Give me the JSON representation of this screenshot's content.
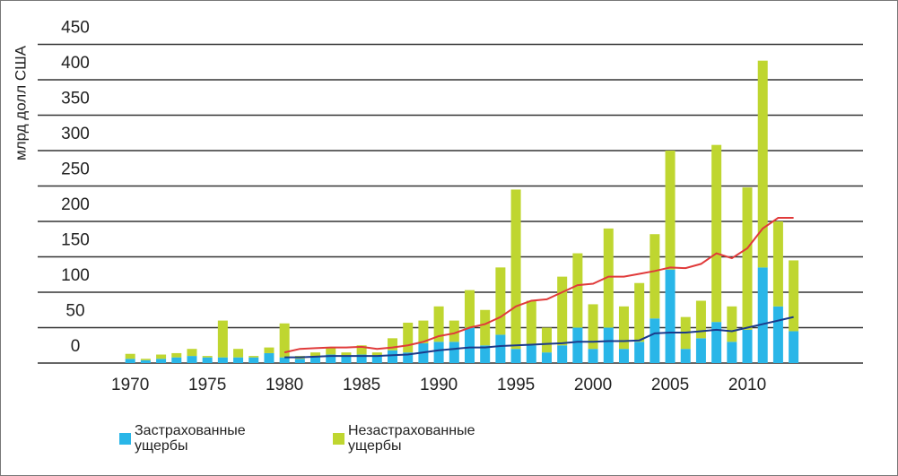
{
  "chart_data": {
    "type": "bar",
    "stacked": true,
    "y_label": "млрд долл США",
    "x": [
      1970,
      1971,
      1972,
      1973,
      1974,
      1975,
      1976,
      1977,
      1978,
      1979,
      1980,
      1981,
      1982,
      1983,
      1984,
      1985,
      1986,
      1987,
      1988,
      1989,
      1990,
      1991,
      1992,
      1993,
      1994,
      1995,
      1996,
      1997,
      1998,
      1999,
      2000,
      2001,
      2002,
      2003,
      2004,
      2005,
      2006,
      2007,
      2008,
      2009,
      2010,
      2011,
      2012,
      2013
    ],
    "xlim": [
      1964,
      2017.5
    ],
    "xticks": [
      1970,
      1975,
      1980,
      1985,
      1990,
      1995,
      2000,
      2005,
      2010
    ],
    "ylim": [
      0,
      450
    ],
    "yticks": [
      0,
      50,
      100,
      150,
      200,
      250,
      300,
      350,
      400,
      450
    ],
    "grid": true,
    "series": [
      {
        "name": "Застрахованные ущербы",
        "color": "#29b6e8",
        "values": [
          6,
          4,
          6,
          8,
          10,
          8,
          8,
          8,
          8,
          14,
          8,
          6,
          10,
          12,
          10,
          12,
          10,
          18,
          15,
          28,
          30,
          30,
          50,
          25,
          40,
          20,
          25,
          15,
          25,
          50,
          20,
          50,
          20,
          30,
          63,
          132,
          20,
          35,
          58,
          30,
          47,
          135,
          80,
          45
        ]
      },
      {
        "name": "Незастрахованные ущербы",
        "color": "#bfd630",
        "values": [
          7,
          2,
          6,
          6,
          10,
          2,
          52,
          12,
          2,
          8,
          48,
          4,
          5,
          10,
          5,
          13,
          5,
          17,
          42,
          32,
          50,
          30,
          53,
          50,
          95,
          225,
          63,
          35,
          97,
          105,
          63,
          140,
          60,
          83,
          119,
          168,
          45,
          53,
          250,
          50,
          201,
          292,
          120,
          100
        ]
      }
    ],
    "lines": [
      {
        "type": "line",
        "color": "#e03a3a",
        "values": [
          null,
          null,
          null,
          null,
          null,
          null,
          null,
          null,
          null,
          null,
          15,
          20,
          21,
          22,
          22,
          23,
          20,
          22,
          25,
          30,
          38,
          42,
          50,
          55,
          65,
          80,
          88,
          90,
          100,
          110,
          112,
          122,
          122,
          126,
          130,
          135,
          134,
          140,
          155,
          148,
          162,
          190,
          205,
          205
        ]
      },
      {
        "type": "line",
        "color": "#1a3a8a",
        "values": [
          null,
          null,
          null,
          null,
          null,
          null,
          null,
          null,
          null,
          null,
          8,
          8,
          9,
          10,
          10,
          10,
          10,
          11,
          12,
          15,
          18,
          20,
          22,
          22,
          24,
          25,
          26,
          27,
          28,
          30,
          30,
          31,
          31,
          32,
          42,
          43,
          43,
          45,
          47,
          45,
          50,
          55,
          60,
          65
        ]
      }
    ]
  }
}
